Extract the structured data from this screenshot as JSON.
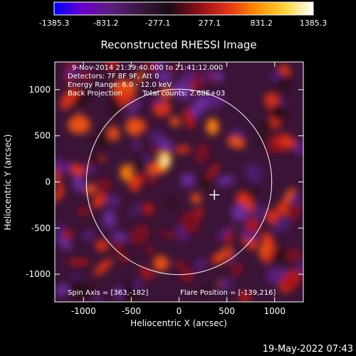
{
  "chart_data": {
    "type": "heatmap",
    "title": "Reconstructed RHESSI Image",
    "xlabel": "Heliocentric X (arcsec)",
    "ylabel": "Heliocentric Y (arcsec)",
    "xlim": [
      -1300,
      1300
    ],
    "ylim": [
      -1300,
      1300
    ],
    "xticks": [
      -1000,
      -500,
      0,
      500,
      1000
    ],
    "yticks": [
      -1000,
      -500,
      0,
      500,
      1000
    ],
    "colorbar": {
      "min": -1385.3,
      "max": 1385.3,
      "tick_values": [
        -1385.3,
        -831.2,
        -277.1,
        277.1,
        831.2,
        1385.3
      ],
      "tick_labels": [
        "-1385.3",
        "-831.2",
        "-277.1",
        "277.1",
        "831.2",
        "1385.3"
      ],
      "colormap_stops": [
        "#0000ff",
        "#6a00c8",
        "#5a1f7a",
        "#3b1640",
        "#1a0a14",
        "#8a0f18",
        "#e0301a",
        "#ff8a00",
        "#ffd43a",
        "#ffffff"
      ]
    },
    "annotations": [
      "9-Nov-2014 21:39:40.000 to 21:41:12.000",
      "Detectors: 7F 8F 9F, Att 0",
      "Energy Range: 6.0 - 12.0 keV",
      "Back Projection",
      "Total counts: 2.68E+03",
      "Spin Axis = [363,-182]",
      "Flare Position = [-139,216]"
    ],
    "solar_limb": {
      "center": [
        0,
        0
      ],
      "radius": 970
    },
    "cross_marker": [
      370,
      -140
    ],
    "bright_sources": [
      {
        "x": -150,
        "y": 230,
        "value": 1385.3
      },
      {
        "x": -550,
        "y": 100,
        "value": 900
      },
      {
        "x": 350,
        "y": 600,
        "value": 950
      }
    ],
    "footer_timestamp": "19-May-2022 07:43"
  },
  "colors": {
    "background": "#000000",
    "foreground": "#ffffff"
  }
}
